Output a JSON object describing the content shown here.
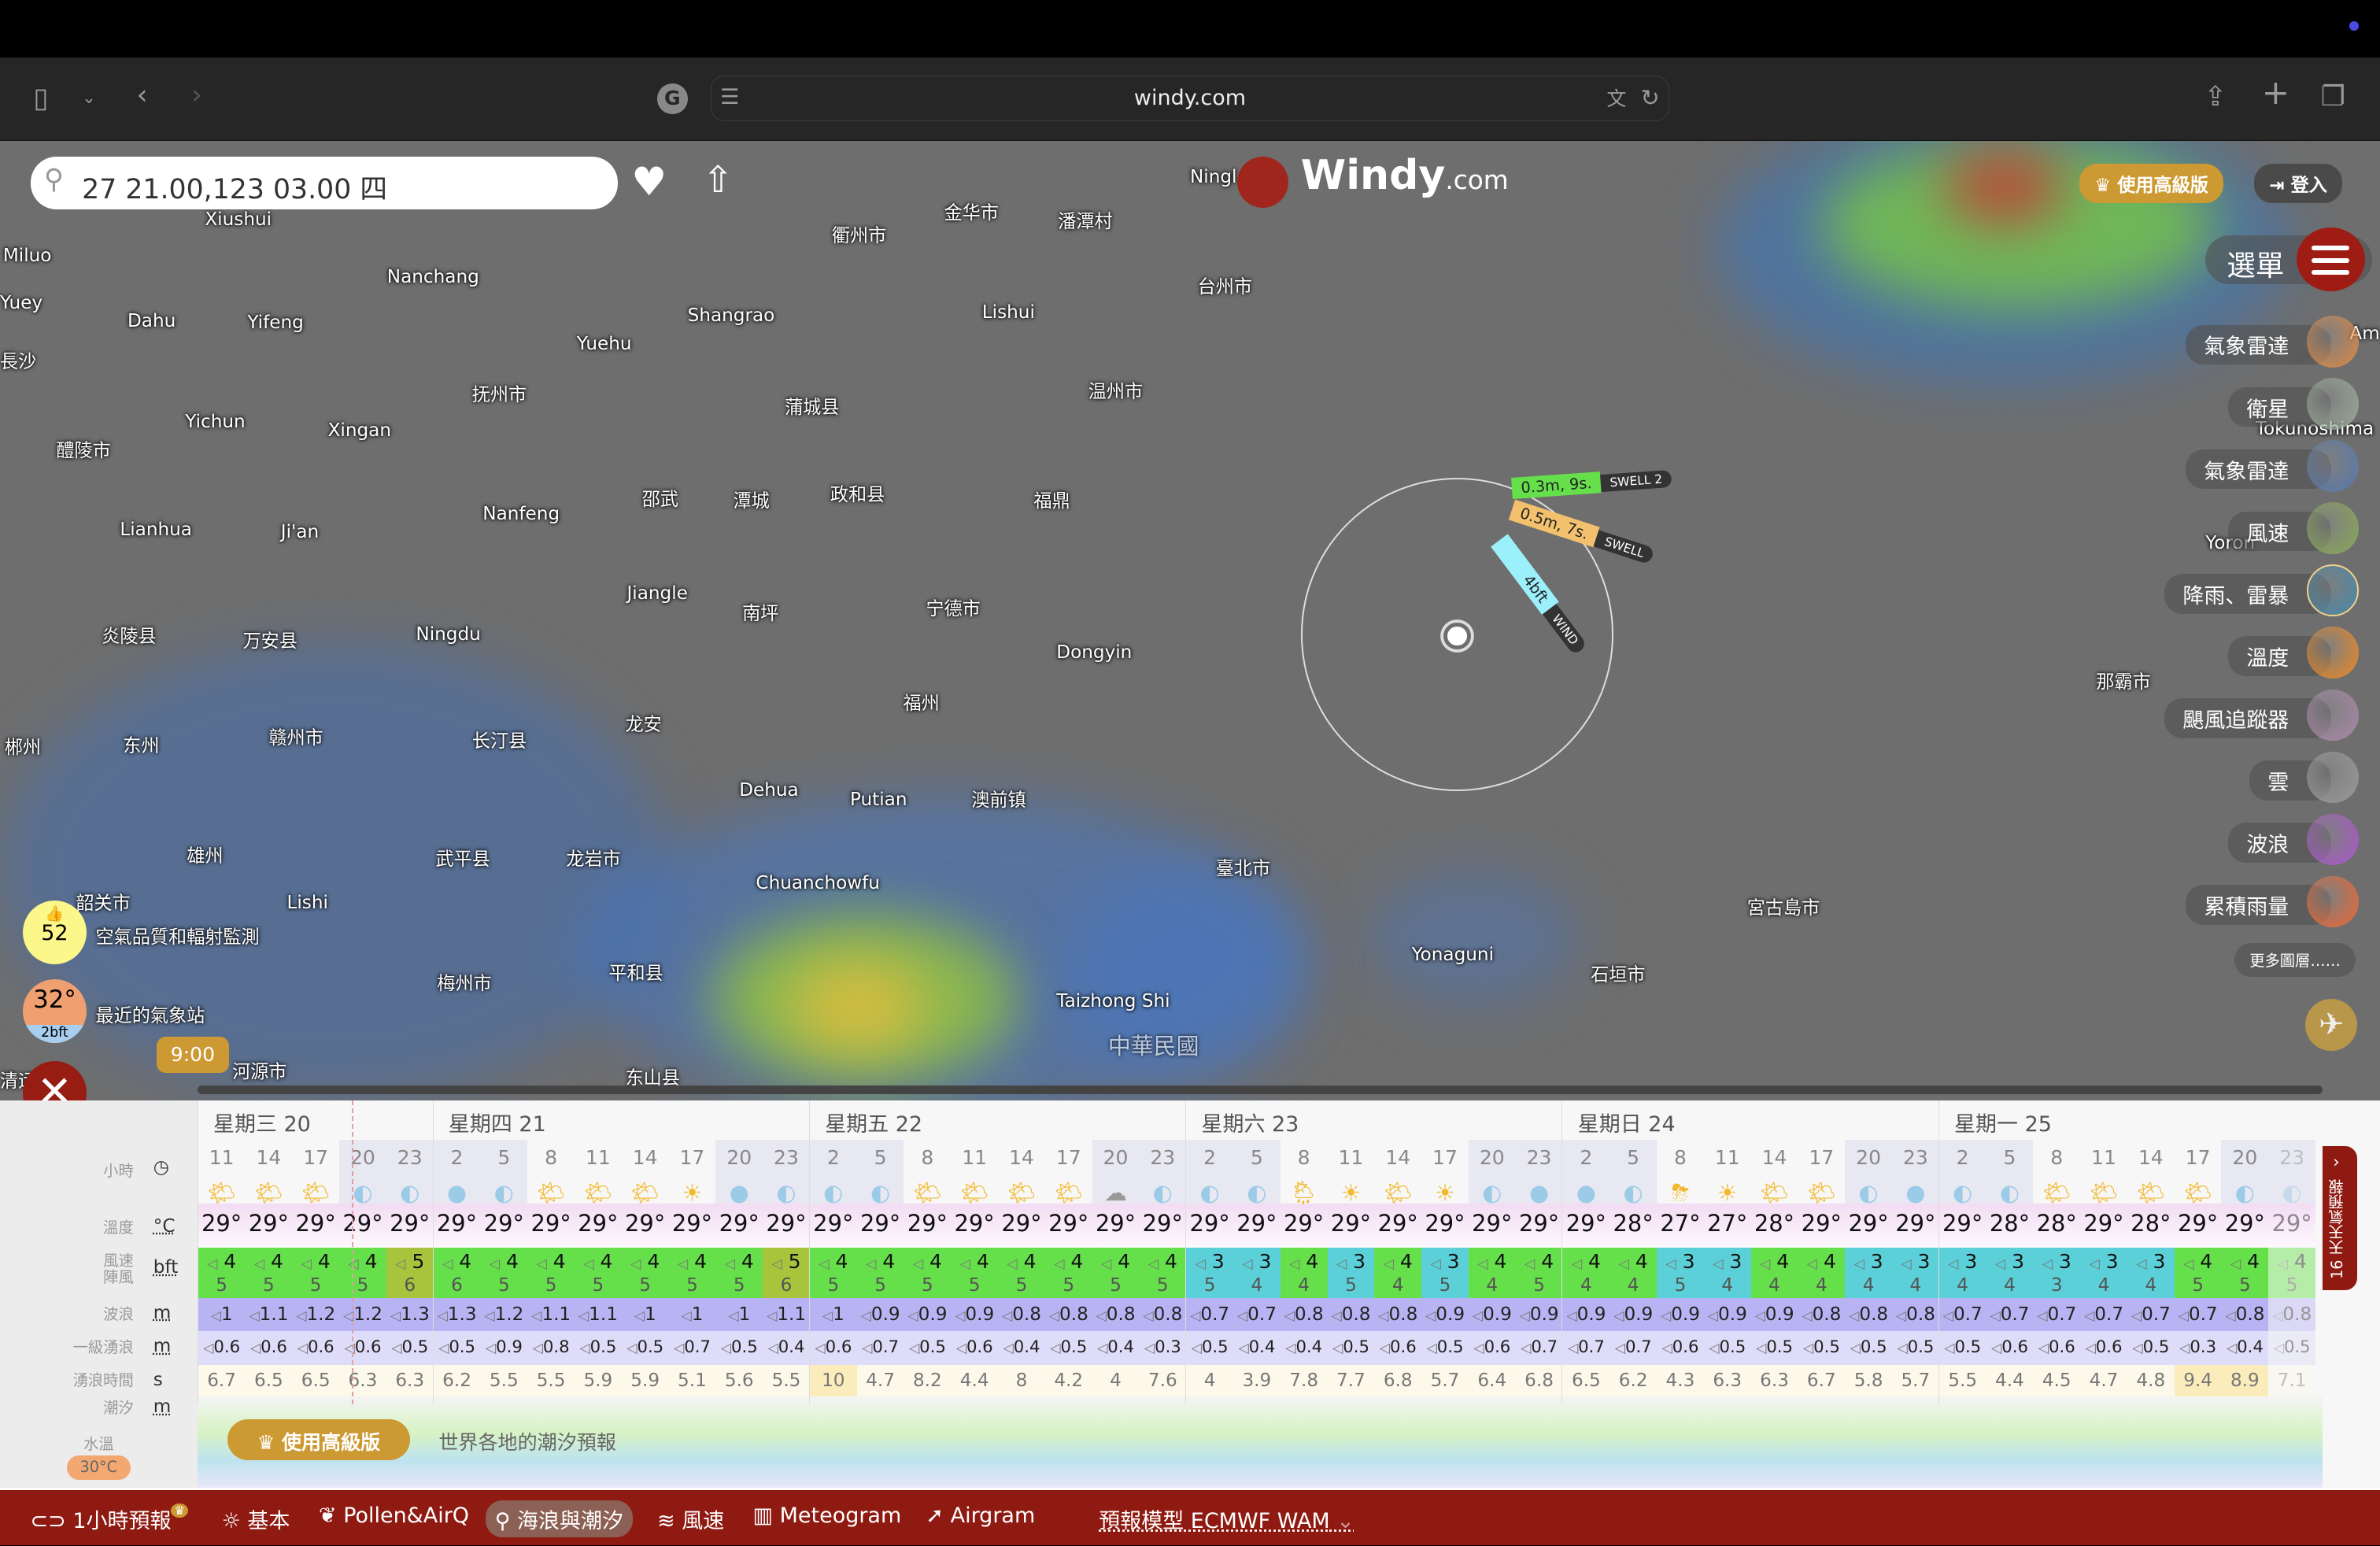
{
  "browser": {
    "url": "windy.com"
  },
  "search": {
    "value": "27 21.00,123 03.00 四"
  },
  "logo": {
    "name": "Windy",
    "suffix": ".com"
  },
  "header": {
    "premium": "使用高級版",
    "login": "登入",
    "menu": "選單"
  },
  "layers": [
    {
      "label": "氣象雷達",
      "color": "#d84"
    },
    {
      "label": "衛星",
      "color": "#9a9"
    },
    {
      "label": "氣象雷達",
      "color": "#57a"
    },
    {
      "label": "風速",
      "color": "#8a5"
    },
    {
      "label": "降雨、雷暴",
      "color": "#48a"
    },
    {
      "label": "溫度",
      "color": "#e82"
    },
    {
      "label": "颶風追蹤器",
      "color": "#a8a"
    },
    {
      "label": "雲",
      "color": "#999"
    },
    {
      "label": "波浪",
      "color": "#a5c"
    },
    {
      "label": "累積雨量",
      "color": "#e63"
    }
  ],
  "more_layers": "更多圖層……",
  "picker": {
    "swell2_value": "0.3m, 9s.",
    "swell2_label": "SWELL 2",
    "swell_value": "0.5m, 7s.",
    "swell_label": "SWELL",
    "wind_value": "4bft",
    "wind_label": "WIND"
  },
  "widgets": {
    "aqi_value": "52",
    "aqi_label": "空氣品質和輻射監測",
    "station_temp": "32°",
    "station_wind": "2bft",
    "station_label": "最近的氣象站",
    "time_bubble": "9:00"
  },
  "map": {
    "labels": [
      "Yuey",
      "Xiushui",
      "Miluo",
      "Nanchang",
      "Dahu",
      "Yifeng",
      "長沙",
      "Shangrao",
      "Yuehu",
      "衢州市",
      "金华市",
      "潘潭村",
      "Ningl",
      "台州市",
      "Lishui",
      "温州市",
      "抚州市",
      "蒲城县",
      "Yichun",
      "Xingan",
      "醴陵市",
      "邵武",
      "潭城",
      "政和县",
      "福鼎",
      "Nanfeng",
      "Lianhua",
      "Ji'an",
      "Jiangle",
      "南坪",
      "宁德市",
      "炎陵县",
      "万安县",
      "Ningdu",
      "Dongyin",
      "福州",
      "郴州",
      "东州",
      "赣州市",
      "长汀县",
      "龙安",
      "Dehua",
      "Putian",
      "澳前镇",
      "雄州",
      "武平县",
      "龙岩市",
      "臺北市",
      "Chuanchowfu",
      "韶关市",
      "Lishi",
      "宮古島市",
      "梅州市",
      "平和县",
      "Yonaguni",
      "石垣市",
      "Taizhong Shi",
      "中華民國",
      "河源市",
      "东山县",
      "清远",
      "Tokunoshima",
      "Yoron",
      "那霸市",
      "Am"
    ]
  },
  "rows": {
    "hour": "小時",
    "temp": "溫度",
    "temp_unit": "°C",
    "wind": "風速\n陣風",
    "wind_unit": "bft",
    "waves": "波浪",
    "waves_unit": "m",
    "swell": "一級湧浪",
    "swell_unit": "m",
    "period": "湧浪時間",
    "period_unit": "s",
    "tide": "潮汐",
    "tide_unit": "m",
    "water": "水溫",
    "water_value": "30°C"
  },
  "forecast": {
    "days": [
      {
        "label": "星期三 20",
        "hours": [
          "11",
          "14",
          "17",
          "20",
          "23"
        ],
        "icons": [
          "sun-cloud",
          "sun-cloud",
          "sun-cloud",
          "moon-cloud",
          "moon-cloud"
        ],
        "temps": [
          "29°",
          "29°",
          "29°",
          "29°",
          "29°"
        ],
        "wind": [
          "4",
          "4",
          "4",
          "4",
          "5"
        ],
        "gust": [
          "5",
          "5",
          "5",
          "5",
          "6"
        ],
        "waves": [
          "1",
          "1.1",
          "1.2",
          "1.2",
          "1.3"
        ],
        "swell": [
          "0.6",
          "0.6",
          "0.6",
          "0.6",
          "0.5"
        ],
        "period": [
          "6.7",
          "6.5",
          "6.5",
          "6.3",
          "6.3"
        ]
      },
      {
        "label": "星期四 21",
        "hours": [
          "2",
          "5",
          "8",
          "11",
          "14",
          "17",
          "20",
          "23"
        ],
        "icons": [
          "moon",
          "moon-cloud",
          "sun-cloud",
          "sun-cloud",
          "sun-cloud",
          "sun",
          "moon",
          "moon-cloud"
        ],
        "temps": [
          "29°",
          "29°",
          "29°",
          "29°",
          "29°",
          "29°",
          "29°",
          "29°"
        ],
        "wind": [
          "4",
          "4",
          "4",
          "4",
          "4",
          "4",
          "4",
          "5"
        ],
        "gust": [
          "6",
          "5",
          "5",
          "5",
          "5",
          "5",
          "5",
          "6"
        ],
        "waves": [
          "1.3",
          "1.2",
          "1.1",
          "1.1",
          "1",
          "1",
          "1",
          "1.1"
        ],
        "swell": [
          "0.5",
          "0.9",
          "0.8",
          "0.5",
          "0.5",
          "0.7",
          "0.5",
          "0.4"
        ],
        "period": [
          "6.2",
          "5.5",
          "5.5",
          "5.9",
          "5.9",
          "5.1",
          "5.6",
          "5.5"
        ]
      },
      {
        "label": "星期五 22",
        "hours": [
          "2",
          "5",
          "8",
          "11",
          "14",
          "17",
          "20",
          "23"
        ],
        "icons": [
          "moon-cloud",
          "moon-cloud",
          "sun-cloud",
          "sun-cloud",
          "sun-cloud",
          "sun-cloud",
          "cloud",
          "moon-cloud"
        ],
        "temps": [
          "29°",
          "29°",
          "29°",
          "29°",
          "29°",
          "29°",
          "29°",
          "29°"
        ],
        "wind": [
          "4",
          "4",
          "4",
          "4",
          "4",
          "4",
          "4",
          "4"
        ],
        "gust": [
          "5",
          "5",
          "5",
          "5",
          "5",
          "5",
          "5",
          "5"
        ],
        "waves": [
          "1",
          "0.9",
          "0.9",
          "0.9",
          "0.8",
          "0.8",
          "0.8",
          "0.8"
        ],
        "swell": [
          "0.6",
          "0.7",
          "0.5",
          "0.6",
          "0.4",
          "0.5",
          "0.4",
          "0.3"
        ],
        "period": [
          "10",
          "4.7",
          "8.2",
          "4.4",
          "8",
          "4.2",
          "4",
          "7.6"
        ]
      },
      {
        "label": "星期六 23",
        "hours": [
          "2",
          "5",
          "8",
          "11",
          "14",
          "17",
          "20",
          "23"
        ],
        "icons": [
          "moon-cloud",
          "moon-cloud",
          "sun-rain",
          "sun",
          "sun-cloud",
          "sun",
          "moon-cloud",
          "moon"
        ],
        "temps": [
          "29°",
          "29°",
          "29°",
          "29°",
          "29°",
          "29°",
          "29°",
          "29°"
        ],
        "wind": [
          "3",
          "3",
          "4",
          "3",
          "4",
          "3",
          "4",
          "4"
        ],
        "gust": [
          "5",
          "4",
          "4",
          "5",
          "4",
          "5",
          "4",
          "5"
        ],
        "waves": [
          "0.7",
          "0.7",
          "0.8",
          "0.8",
          "0.8",
          "0.9",
          "0.9",
          "0.9"
        ],
        "swell": [
          "0.5",
          "0.4",
          "0.4",
          "0.5",
          "0.6",
          "0.5",
          "0.6",
          "0.7"
        ],
        "period": [
          "4",
          "3.9",
          "7.8",
          "7.7",
          "6.8",
          "5.7",
          "6.4",
          "6.8"
        ]
      },
      {
        "label": "星期日 24",
        "hours": [
          "2",
          "5",
          "8",
          "11",
          "14",
          "17",
          "20",
          "23"
        ],
        "icons": [
          "moon",
          "moon-rain",
          "sun-thunder",
          "sun",
          "sun-cloud",
          "sun-cloud",
          "moon-cloud",
          "moon"
        ],
        "temps": [
          "29°",
          "28°",
          "27°",
          "27°",
          "28°",
          "29°",
          "29°",
          "29°"
        ],
        "wind": [
          "4",
          "4",
          "3",
          "3",
          "4",
          "4",
          "3",
          "3"
        ],
        "gust": [
          "4",
          "4",
          "5",
          "4",
          "4",
          "4",
          "4",
          "4"
        ],
        "waves": [
          "0.9",
          "0.9",
          "0.9",
          "0.9",
          "0.9",
          "0.8",
          "0.8",
          "0.8"
        ],
        "swell": [
          "0.7",
          "0.7",
          "0.6",
          "0.5",
          "0.5",
          "0.5",
          "0.5",
          "0.5"
        ],
        "period": [
          "6.5",
          "6.2",
          "4.3",
          "6.3",
          "6.3",
          "6.7",
          "5.8",
          "5.7"
        ]
      },
      {
        "label": "星期一 25",
        "hours": [
          "2",
          "5",
          "8",
          "11",
          "14",
          "17",
          "20",
          "23"
        ],
        "icons": [
          "moon-cloud",
          "moon-cloud",
          "sun-cloud",
          "sun-cloud",
          "sun-cloud",
          "sun-cloud",
          "moon-cloud",
          "moon-cloud"
        ],
        "temps": [
          "29°",
          "28°",
          "28°",
          "29°",
          "28°",
          "29°",
          "29°",
          "29°"
        ],
        "wind": [
          "3",
          "3",
          "3",
          "3",
          "3",
          "4",
          "4",
          "4"
        ],
        "gust": [
          "4",
          "4",
          "3",
          "4",
          "4",
          "5",
          "5",
          "5"
        ],
        "waves": [
          "0.7",
          "0.7",
          "0.7",
          "0.7",
          "0.7",
          "0.7",
          "0.8",
          "0.8"
        ],
        "swell": [
          "0.5",
          "0.6",
          "0.6",
          "0.6",
          "0.5",
          "0.3",
          "0.4",
          "0.5"
        ],
        "period": [
          "5.5",
          "4.4",
          "4.5",
          "4.7",
          "4.8",
          "9.4",
          "8.9",
          "7.1"
        ]
      }
    ]
  },
  "tide_promo": {
    "button": "使用高級版",
    "text": "世界各地的潮汐預報"
  },
  "side_tab": "16 天天氣預報",
  "nav": {
    "items": [
      "1小時預報",
      "基本",
      "Pollen&AirQ",
      "海浪與潮汐",
      "風速",
      "Meteogram",
      "Airgram"
    ],
    "model": "預報模型 ECMWF WAM"
  },
  "colors": {
    "brand": "#8e1a12",
    "premium": "#cc9933",
    "wind_3": "#5cd0d8",
    "wind_4": "#66e04a",
    "wind_5": "#a8c43c"
  }
}
